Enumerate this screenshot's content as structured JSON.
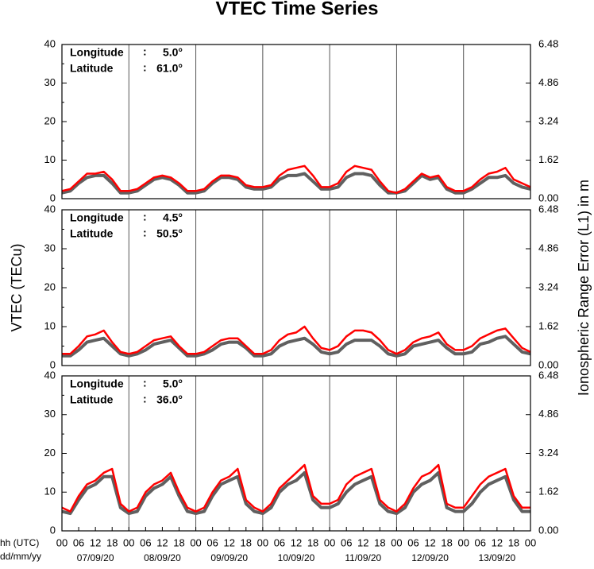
{
  "title": "VTEC Time Series",
  "y_label": "VTEC (TECu)",
  "y2_label": "Ionospheric Range Error (L1) in m",
  "x_label": "hh (UTC)",
  "date_label": "dd/mm/yy",
  "chart_data": [
    {
      "type": "line",
      "longitude_label": "Longitude",
      "separator": ":",
      "longitude": "5.0°",
      "latitude_label": "Latitude",
      "latitude": "61.0°",
      "xlim": [
        0,
        168
      ],
      "x": [
        0,
        3,
        6,
        9,
        12,
        15,
        18,
        21,
        24,
        27,
        30,
        33,
        36,
        39,
        42,
        45,
        48,
        51,
        54,
        57,
        60,
        63,
        66,
        69,
        72,
        75,
        78,
        81,
        84,
        87,
        90,
        93,
        96,
        99,
        102,
        105,
        108,
        111,
        114,
        117,
        120,
        123,
        126,
        129,
        132,
        135,
        138,
        141,
        144,
        147,
        150,
        153,
        156,
        159,
        162,
        165,
        168
      ],
      "ylim": [
        0,
        40
      ],
      "yticks": [
        0,
        10,
        20,
        30,
        40
      ],
      "y2lim": [
        0,
        6.48
      ],
      "y2ticks": [
        {
          "value": 0,
          "label": "0.00"
        },
        1.62,
        3.24,
        4.86,
        6.48
      ],
      "series": [
        {
          "color": "#606060",
          "values": [
            1.5,
            2,
            4,
            5.5,
            6,
            6,
            4,
            1.5,
            1.5,
            2,
            3.5,
            5,
            5.5,
            5,
            3.5,
            1.5,
            1.5,
            2,
            4,
            5.5,
            5.5,
            5,
            3,
            2.5,
            2.5,
            3,
            5,
            6,
            6,
            6.5,
            4.5,
            2.5,
            2.5,
            3,
            5.5,
            6.5,
            6.5,
            6,
            3.5,
            1.5,
            1.5,
            2,
            4,
            6,
            5,
            5.5,
            2.5,
            1.5,
            1.5,
            2.5,
            4,
            5.5,
            5.5,
            6,
            4,
            3,
            2.5
          ]
        },
        {
          "color": "#ff0000",
          "values": [
            2,
            2.5,
            4.5,
            6.5,
            6.5,
            7,
            5,
            2,
            2,
            2.5,
            4,
            5.5,
            6,
            5.5,
            4,
            2,
            2,
            2.5,
            4.5,
            6,
            6,
            5.5,
            3.5,
            3,
            3,
            3.5,
            6,
            7.5,
            8,
            8.5,
            6,
            3,
            3,
            4,
            7,
            8.5,
            8,
            7.5,
            4.5,
            2,
            1.5,
            2.5,
            4.5,
            6.5,
            5.5,
            6,
            3,
            2,
            2,
            3,
            5,
            6.5,
            7,
            8,
            5,
            4,
            3
          ]
        }
      ]
    },
    {
      "type": "line",
      "longitude_label": "Longitude",
      "separator": ":",
      "longitude": "4.5°",
      "latitude_label": "Latitude",
      "latitude": "50.5°",
      "xlim": [
        0,
        168
      ],
      "x": [
        0,
        3,
        6,
        9,
        12,
        15,
        18,
        21,
        24,
        27,
        30,
        33,
        36,
        39,
        42,
        45,
        48,
        51,
        54,
        57,
        60,
        63,
        66,
        69,
        72,
        75,
        78,
        81,
        84,
        87,
        90,
        93,
        96,
        99,
        102,
        105,
        108,
        111,
        114,
        117,
        120,
        123,
        126,
        129,
        132,
        135,
        138,
        141,
        144,
        147,
        150,
        153,
        156,
        159,
        162,
        165,
        168
      ],
      "ylim": [
        0,
        40
      ],
      "yticks": [
        0,
        10,
        20,
        30,
        40
      ],
      "y2lim": [
        0,
        6.48
      ],
      "y2ticks": [
        {
          "value": 0,
          "label": "0.00"
        },
        1.62,
        3.24,
        4.86,
        6.48
      ],
      "series": [
        {
          "color": "#606060",
          "values": [
            2.5,
            2.5,
            4,
            6,
            6.5,
            7,
            5,
            3,
            2.5,
            3,
            4,
            5.5,
            6,
            6.5,
            4.5,
            2.5,
            2.5,
            3,
            4,
            5.5,
            6,
            6,
            4.5,
            2.5,
            2.5,
            3,
            5,
            6,
            6.5,
            7,
            5.5,
            3.5,
            3,
            3.5,
            5.5,
            6.5,
            6.5,
            6.5,
            5,
            3,
            2.5,
            3,
            5,
            5.5,
            6,
            6.5,
            4.5,
            3,
            3,
            3.5,
            5.5,
            6,
            7,
            7.5,
            5.5,
            3.5,
            3
          ]
        },
        {
          "color": "#ff0000",
          "values": [
            3,
            3,
            5,
            7.5,
            8,
            9,
            6,
            3.5,
            3,
            3.5,
            5,
            6.5,
            7,
            7.5,
            5,
            3,
            3,
            3.5,
            5,
            6.5,
            7,
            7,
            5,
            3,
            3,
            4,
            6.5,
            8,
            8.5,
            10,
            7,
            4.5,
            4,
            5,
            7.5,
            9,
            9,
            8.5,
            6.5,
            4,
            3,
            4,
            6,
            7,
            7.5,
            8.5,
            5.5,
            4,
            4,
            5,
            7,
            8,
            9,
            9.5,
            7,
            4.5,
            3.5
          ]
        }
      ]
    },
    {
      "type": "line",
      "longitude_label": "Longitude",
      "separator": ":",
      "longitude": "5.0°",
      "latitude_label": "Latitude",
      "latitude": "36.0°",
      "xlim": [
        0,
        168
      ],
      "x": [
        0,
        3,
        6,
        9,
        12,
        15,
        18,
        21,
        24,
        27,
        30,
        33,
        36,
        39,
        42,
        45,
        48,
        51,
        54,
        57,
        60,
        63,
        66,
        69,
        72,
        75,
        78,
        81,
        84,
        87,
        90,
        93,
        96,
        99,
        102,
        105,
        108,
        111,
        114,
        117,
        120,
        123,
        126,
        129,
        132,
        135,
        138,
        141,
        144,
        147,
        150,
        153,
        156,
        159,
        162,
        165,
        168
      ],
      "xticks": [
        {
          "value": 0,
          "label": "00"
        },
        {
          "value": 6,
          "label": "06"
        },
        {
          "value": 12,
          "label": "12"
        },
        {
          "value": 18,
          "label": "18"
        },
        {
          "value": 24,
          "label": "00"
        },
        {
          "value": 30,
          "label": "06"
        },
        {
          "value": 36,
          "label": "12"
        },
        {
          "value": 42,
          "label": "18"
        },
        {
          "value": 48,
          "label": "00"
        },
        {
          "value": 54,
          "label": "06"
        },
        {
          "value": 60,
          "label": "12"
        },
        {
          "value": 66,
          "label": "18"
        },
        {
          "value": 72,
          "label": "00"
        },
        {
          "value": 78,
          "label": "06"
        },
        {
          "value": 84,
          "label": "12"
        },
        {
          "value": 90,
          "label": "18"
        },
        {
          "value": 96,
          "label": "00"
        },
        {
          "value": 102,
          "label": "06"
        },
        {
          "value": 108,
          "label": "12"
        },
        {
          "value": 114,
          "label": "18"
        },
        {
          "value": 120,
          "label": "00"
        },
        {
          "value": 126,
          "label": "06"
        },
        {
          "value": 132,
          "label": "12"
        },
        {
          "value": 138,
          "label": "18"
        },
        {
          "value": 144,
          "label": "00"
        },
        {
          "value": 150,
          "label": "06"
        },
        {
          "value": 156,
          "label": "12"
        },
        {
          "value": 162,
          "label": "18"
        },
        {
          "value": 168,
          "label": "00"
        }
      ],
      "dates": [
        {
          "value": 12,
          "label": "07/09/20"
        },
        {
          "value": 36,
          "label": "08/09/20"
        },
        {
          "value": 60,
          "label": "09/09/20"
        },
        {
          "value": 84,
          "label": "10/09/20"
        },
        {
          "value": 108,
          "label": "11/09/20"
        },
        {
          "value": 132,
          "label": "12/09/20"
        },
        {
          "value": 156,
          "label": "13/09/20"
        }
      ],
      "ylim": [
        0,
        40
      ],
      "yticks": [
        0,
        10,
        20,
        30,
        40
      ],
      "y2lim": [
        0,
        6.48
      ],
      "y2ticks": [
        {
          "value": 0,
          "label": "0.00"
        },
        1.62,
        3.24,
        4.86,
        6.48
      ],
      "series": [
        {
          "color": "#606060",
          "values": [
            5,
            4.5,
            8,
            11,
            12,
            14,
            14,
            6,
            4.5,
            5,
            9,
            11,
            12,
            14,
            9,
            5,
            4.5,
            5,
            9,
            12,
            13,
            14,
            7,
            5,
            4.5,
            6,
            10,
            12,
            13,
            15,
            8,
            6,
            6,
            7,
            10,
            12,
            13,
            14,
            7,
            5,
            4.5,
            6,
            10,
            12,
            13,
            15,
            6,
            5,
            5,
            7,
            10,
            12,
            13,
            14,
            8,
            5,
            5
          ]
        },
        {
          "color": "#ff0000",
          "values": [
            6,
            5,
            9,
            12,
            13,
            15,
            16,
            7,
            5,
            6,
            10,
            12,
            13,
            15,
            10,
            6,
            5,
            6,
            10,
            13,
            14,
            16,
            8,
            6,
            5,
            7,
            11,
            13,
            15,
            17,
            9,
            7,
            7,
            8,
            12,
            14,
            15,
            16,
            8,
            6,
            5,
            7,
            11,
            14,
            15,
            17,
            7,
            6,
            6,
            9,
            12,
            14,
            15,
            16,
            9,
            6,
            6
          ]
        }
      ]
    }
  ]
}
